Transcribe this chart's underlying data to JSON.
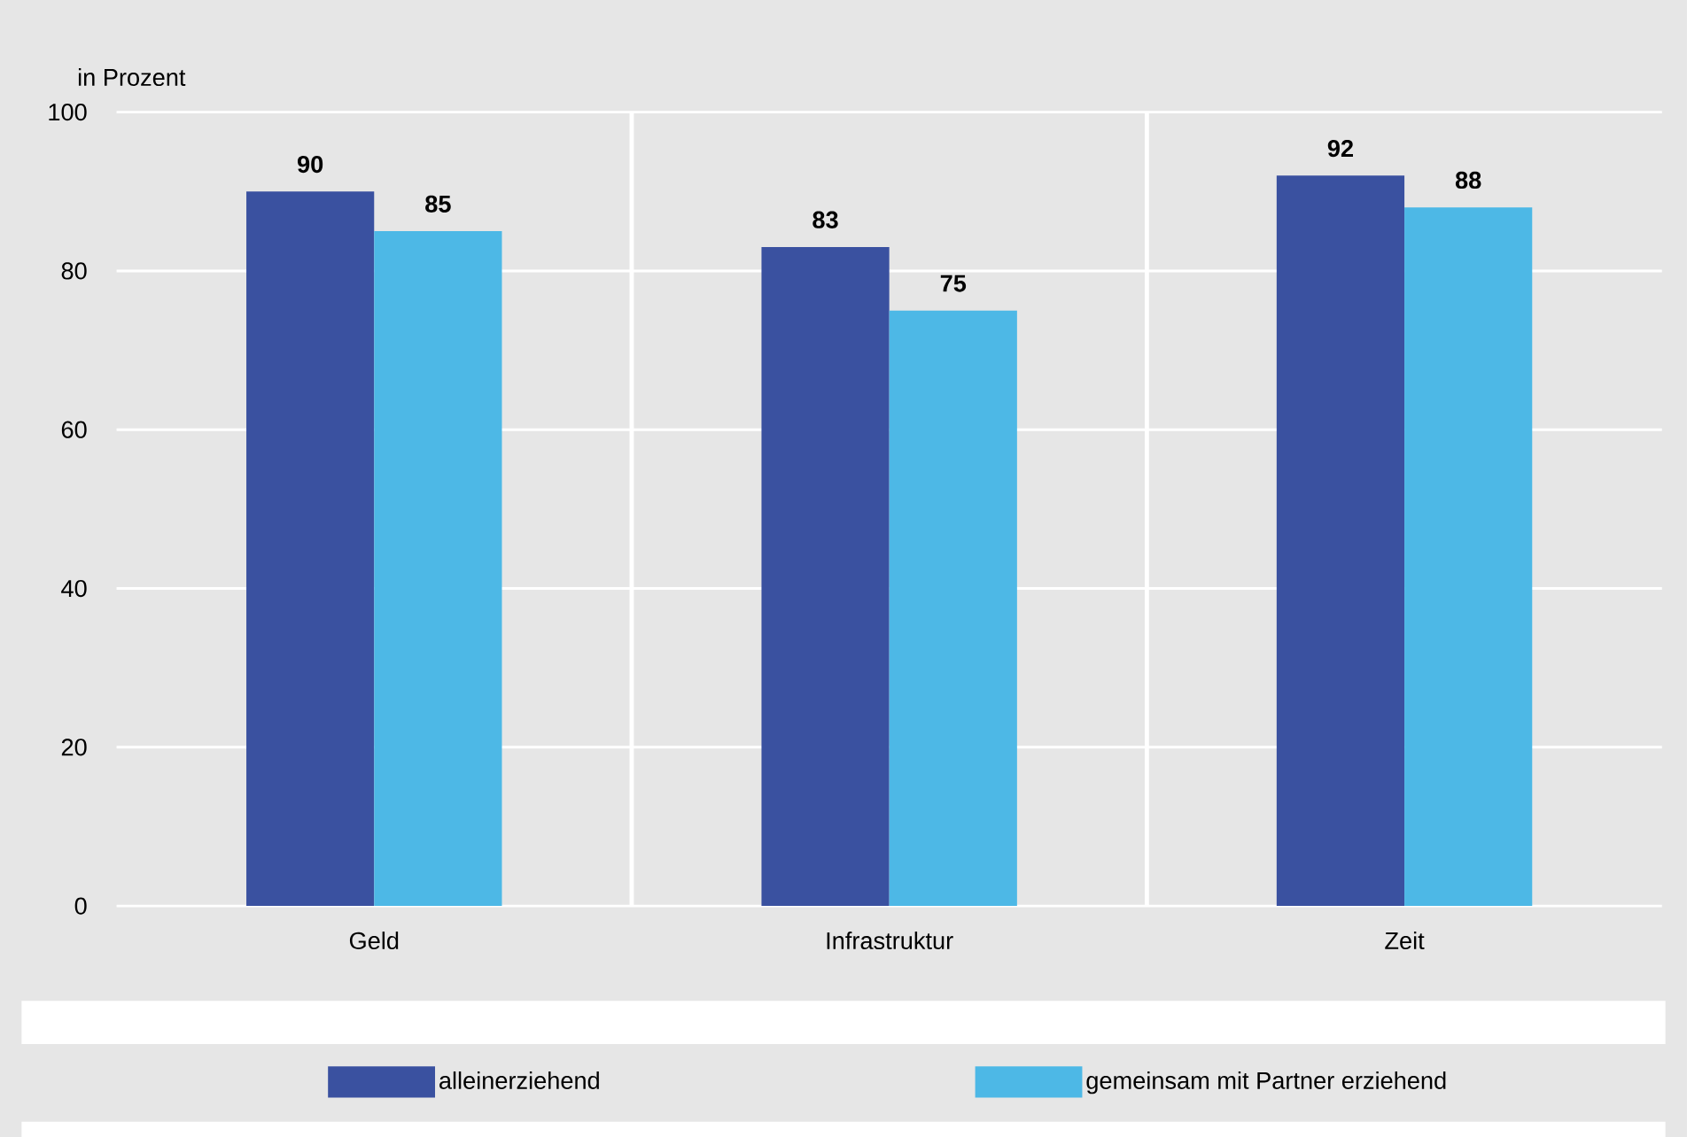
{
  "chart_data": {
    "type": "bar",
    "ylabel": "in Prozent",
    "categories": [
      "Geld",
      "Infrastruktur",
      "Zeit"
    ],
    "series": [
      {
        "name": "alleinerziehend",
        "color": "#3a51a0",
        "values": [
          90,
          83,
          92
        ]
      },
      {
        "name": "gemeinsam mit Partner erziehend",
        "color": "#4db8e6",
        "values": [
          85,
          75,
          88
        ]
      }
    ],
    "ylim": [
      0,
      100
    ],
    "yticks": [
      0,
      20,
      40,
      60,
      80,
      100
    ],
    "grid": true,
    "legend": "bottom",
    "data_labels": true
  }
}
